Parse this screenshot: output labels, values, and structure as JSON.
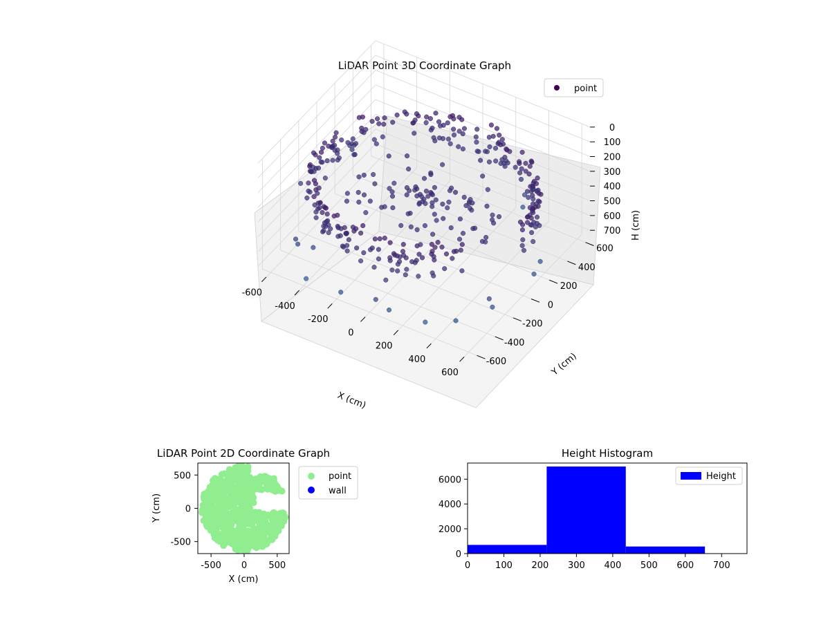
{
  "chart_data": [
    {
      "type": "scatter",
      "title": "LiDAR Point 3D Coordinate Graph",
      "xlabel": "X (cm)",
      "ylabel": "Y (cm)",
      "zlabel": "H (cm)",
      "xlim": [
        -650,
        650
      ],
      "ylim": [
        -650,
        650
      ],
      "zlim": [
        750,
        0
      ],
      "xticks": [
        "-600",
        "-400",
        "-200",
        "0",
        "200",
        "400",
        "600"
      ],
      "yticks": [
        "-600",
        "-400",
        "-200",
        "0",
        "200",
        "400",
        "600"
      ],
      "zticks": [
        "0",
        "100",
        "200",
        "300",
        "400",
        "500",
        "600",
        "700"
      ],
      "legend": [
        "point"
      ],
      "legend_position": "top-right",
      "colormap": "viridis",
      "description": "ring of points: wall at radius ~600 cm, heights ~220-430 cm"
    },
    {
      "type": "scatter",
      "title": "LiDAR Point 2D Coordinate Graph",
      "xlabel": "X (cm)",
      "ylabel": "Y (cm)",
      "xlim": [
        -700,
        680
      ],
      "ylim": [
        -680,
        680
      ],
      "xticks": [
        "-500",
        "0",
        "500"
      ],
      "yticks": [
        "-500",
        "0",
        "500"
      ],
      "series": [
        {
          "name": "point",
          "color": "#90ee90"
        },
        {
          "name": "wall",
          "color": "#0000ff"
        }
      ],
      "legend_position": "outside-right"
    },
    {
      "type": "bar",
      "title": "Height Histogram",
      "xlim": [
        0,
        770
      ],
      "ylim": [
        0,
        7300
      ],
      "xticks": [
        "0",
        "100",
        "200",
        "300",
        "400",
        "500",
        "600",
        "700"
      ],
      "yticks": [
        "0",
        "2000",
        "4000",
        "6000"
      ],
      "bins": [
        [
          0,
          218
        ],
        [
          218,
          436
        ],
        [
          436,
          654
        ]
      ],
      "values": [
        700,
        7020,
        570
      ],
      "series": [
        {
          "name": "Height",
          "color": "#0000ff"
        }
      ],
      "legend_position": "top-right"
    }
  ]
}
